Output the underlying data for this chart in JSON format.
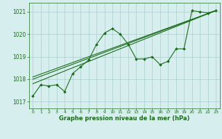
{
  "xlabel": "Graphe pression niveau de la mer (hPa)",
  "xlim": [
    -0.5,
    23.5
  ],
  "ylim": [
    1016.7,
    1021.4
  ],
  "yticks": [
    1017,
    1018,
    1019,
    1020,
    1021
  ],
  "xticks": [
    0,
    1,
    2,
    3,
    4,
    5,
    6,
    7,
    8,
    9,
    10,
    11,
    12,
    13,
    14,
    15,
    16,
    17,
    18,
    19,
    20,
    21,
    22,
    23
  ],
  "bg_color": "#d6eeee",
  "grid_color": "#aacccc",
  "line_color": "#1a6b1a",
  "series_main": {
    "x": [
      0,
      1,
      2,
      3,
      4,
      5,
      6,
      7,
      8,
      9,
      10,
      11,
      12,
      13,
      14,
      15,
      16,
      17,
      18,
      19,
      20,
      21,
      22,
      23
    ],
    "y": [
      1017.25,
      1017.75,
      1017.7,
      1017.75,
      1017.45,
      1018.25,
      1018.55,
      1018.85,
      1019.55,
      1020.05,
      1020.25,
      1020.0,
      1019.55,
      1018.9,
      1018.9,
      1019.0,
      1018.65,
      1018.8,
      1019.35,
      1019.35,
      1021.05,
      1021.0,
      1020.95,
      1021.05
    ]
  },
  "trend1": {
    "x": [
      0,
      23
    ],
    "y": [
      1017.8,
      1021.05
    ]
  },
  "trend2": {
    "x": [
      0,
      23
    ],
    "y": [
      1018.0,
      1021.05
    ]
  },
  "trend3": {
    "x": [
      0,
      23
    ],
    "y": [
      1018.1,
      1021.05
    ]
  }
}
